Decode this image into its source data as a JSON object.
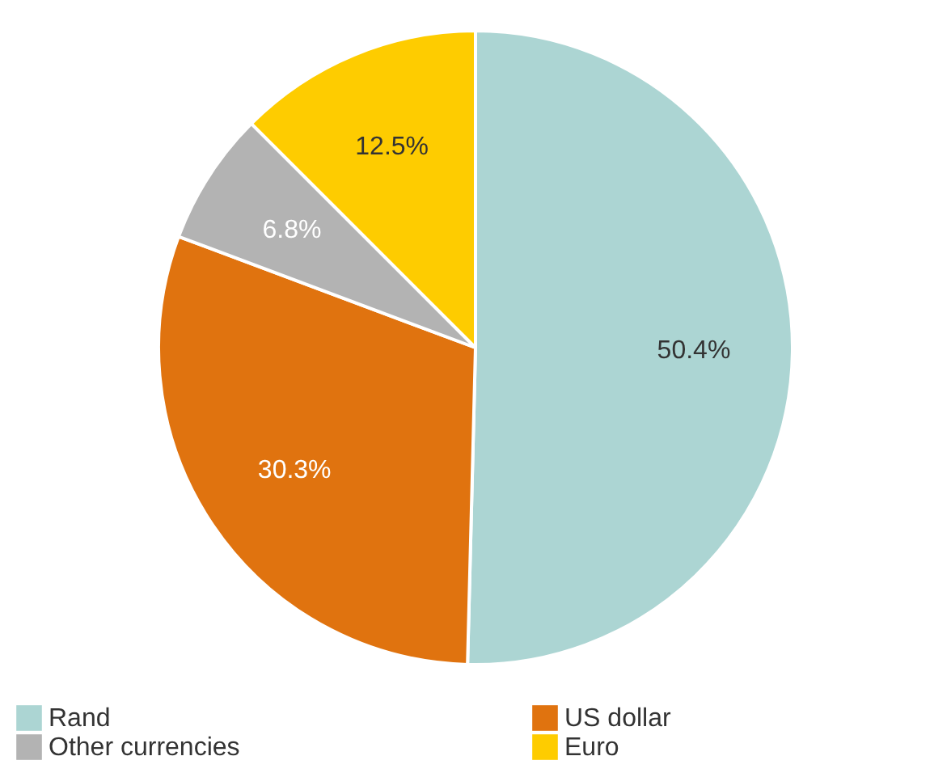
{
  "chart_data": {
    "type": "pie",
    "categories": [
      "Rand",
      "US dollar",
      "Other currencies",
      "Euro"
    ],
    "values": [
      50.4,
      30.3,
      6.8,
      12.5
    ],
    "colors": [
      "#acd5d3",
      "#e0730f",
      "#b3b3b3",
      "#fecc00"
    ],
    "value_labels": [
      "50.4%",
      "30.3%",
      "6.8%",
      "12.5%"
    ],
    "legend": "bottom"
  }
}
